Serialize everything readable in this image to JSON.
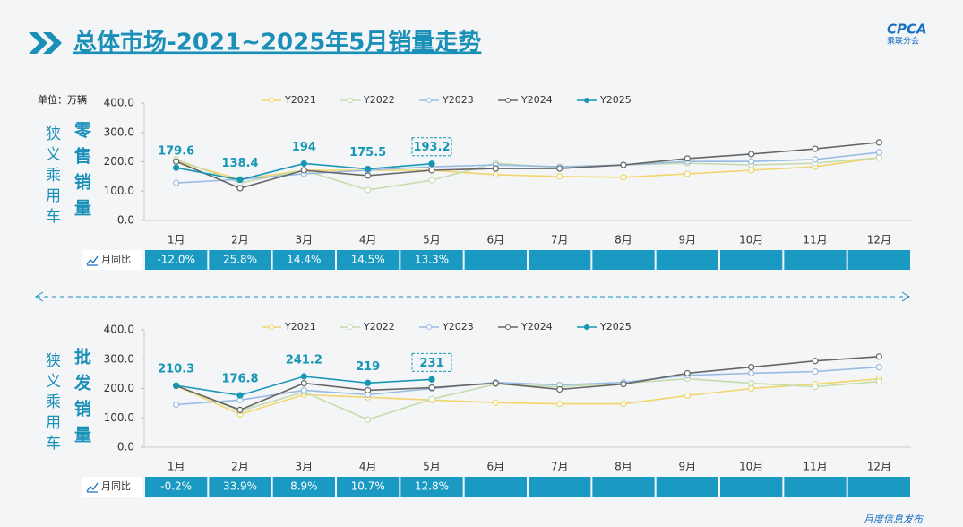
{
  "title": "总体市场-2021~2025年5月销量走势",
  "logo": "CPCA",
  "logo_sub": "乘联分会",
  "footer": "月度信息发布",
  "chart_data": [
    {
      "type": "line",
      "unit_label": "单位：万辆",
      "side_label": "狭义乘用车",
      "metric_label": "零售销量",
      "categories": [
        "1月",
        "2月",
        "3月",
        "4月",
        "5月",
        "6月",
        "7月",
        "8月",
        "9月",
        "10月",
        "11月",
        "12月"
      ],
      "ylim": [
        0,
        400
      ],
      "yticks": [
        {
          "value": 0,
          "label": "0.0"
        },
        {
          "value": 100,
          "label": "100.0"
        },
        {
          "value": 200,
          "label": "200.0"
        },
        {
          "value": 300,
          "label": "300.0"
        },
        {
          "value": 400,
          "label": "400.0"
        }
      ],
      "series": [
        {
          "name": "Y2021",
          "color": "#f3d46a",
          "values": [
            201,
            140,
            171,
            171,
            171,
            156,
            150,
            147,
            159,
            171,
            183,
            214
          ]
        },
        {
          "name": "Y2022",
          "color": "#c5dcad",
          "values": [
            208,
            128,
            171,
            104,
            137,
            195,
            180,
            189,
            195,
            189,
            195,
            214
          ]
        },
        {
          "name": "Y2023",
          "color": "#98bbe2",
          "values": [
            128,
            140,
            159,
            171,
            183,
            189,
            183,
            189,
            201,
            201,
            208,
            232
          ]
        },
        {
          "name": "Y2024",
          "color": "#666666",
          "values": [
            201,
            110,
            171,
            153,
            171,
            177,
            177,
            189,
            211,
            226,
            244,
            266
          ]
        },
        {
          "name": "Y2025",
          "color": "#1797b5",
          "values": [
            179.6,
            138.4,
            194.0,
            175.5,
            193.2,
            null,
            null,
            null,
            null,
            null,
            null,
            null
          ]
        }
      ],
      "yoy_label": "月同比",
      "yoy": {
        "values": [
          -12.0,
          25.8,
          14.4,
          14.5,
          13.3,
          null,
          null,
          null,
          null,
          null,
          null,
          null
        ],
        "value_labels": [
          "-12.0%",
          "25.8%",
          "14.4%",
          "14.5%",
          "13.3%",
          null,
          null,
          null,
          null,
          null,
          null,
          null
        ]
      }
    },
    {
      "type": "line",
      "unit_label": "单位：万辆",
      "side_label": "狭义乘用车",
      "metric_label": "批发销量",
      "categories": [
        "1月",
        "2月",
        "3月",
        "4月",
        "5月",
        "6月",
        "7月",
        "8月",
        "9月",
        "10月",
        "11月",
        "12月"
      ],
      "ylim": [
        0,
        400
      ],
      "yticks": [
        {
          "value": 0,
          "label": "0.0"
        },
        {
          "value": 100,
          "label": "100.0"
        },
        {
          "value": 200,
          "label": "200.0"
        },
        {
          "value": 300,
          "label": "300.0"
        },
        {
          "value": 400,
          "label": "400.0"
        }
      ],
      "series": [
        {
          "name": "Y2021",
          "color": "#f3d46a",
          "values": [
            209,
            112,
            179,
            170,
            161,
            152,
            148,
            148,
            176,
            200,
            215,
            233
          ]
        },
        {
          "name": "Y2022",
          "color": "#c5dcad",
          "values": [
            209,
            124,
            188,
            94,
            164,
            215,
            206,
            218,
            233,
            218,
            206,
            224
          ]
        },
        {
          "name": "Y2023",
          "color": "#98bbe2",
          "values": [
            145,
            161,
            194,
            179,
            200,
            221,
            212,
            221,
            245,
            252,
            258,
            273
          ]
        },
        {
          "name": "Y2024",
          "color": "#666666",
          "values": [
            209,
            127,
            218,
            194,
            203,
            218,
            197,
            215,
            252,
            273,
            294,
            309
          ]
        },
        {
          "name": "Y2025",
          "color": "#1797b5",
          "values": [
            210.3,
            176.8,
            241.2,
            219.0,
            231.0,
            null,
            null,
            null,
            null,
            null,
            null,
            null
          ]
        }
      ],
      "yoy_label": "月同比",
      "yoy": {
        "values": [
          -0.2,
          33.9,
          8.9,
          10.7,
          12.8,
          null,
          null,
          null,
          null,
          null,
          null,
          null
        ],
        "value_labels": [
          "-0.2%",
          "33.9%",
          "8.9%",
          "10.7%",
          "12.8%",
          null,
          null,
          null,
          null,
          null,
          null,
          null
        ]
      }
    }
  ]
}
